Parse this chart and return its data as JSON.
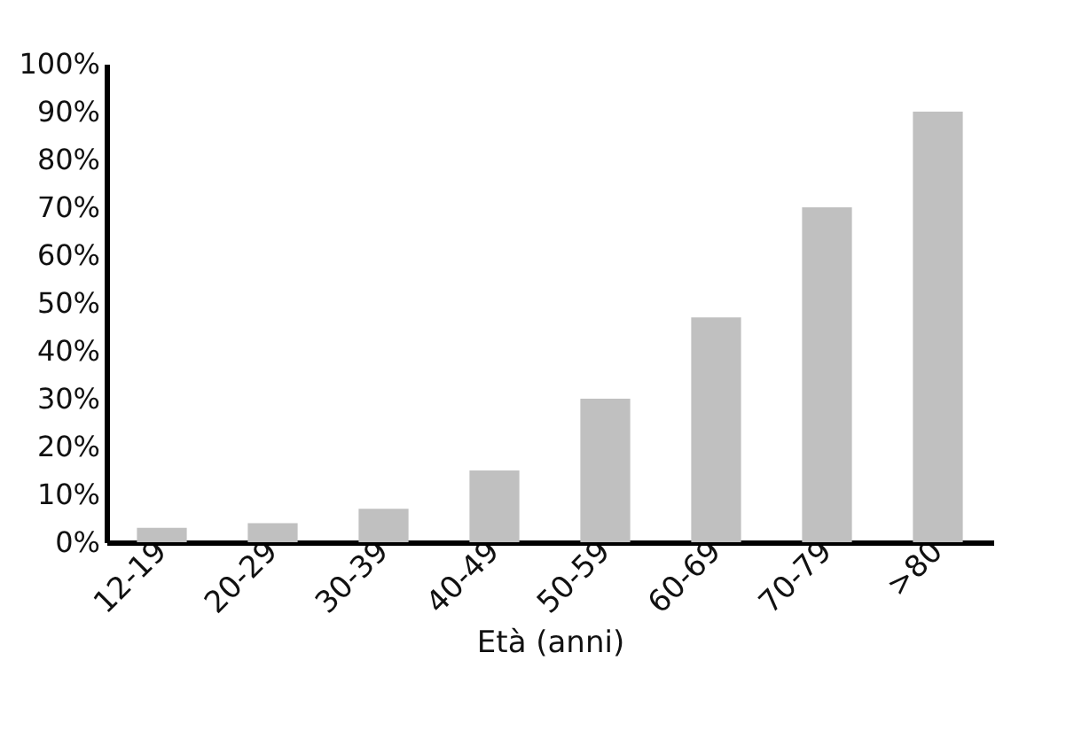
{
  "chart_data": {
    "type": "bar",
    "xlabel": "Età (anni)",
    "categories": [
      "12-19",
      "20-29",
      "30-39",
      "40-49",
      "50-59",
      "60-69",
      "70-79",
      ">80"
    ],
    "values": [
      3,
      4,
      7,
      15,
      30,
      47,
      70,
      90
    ],
    "color": "#c0c0c0",
    "ylim": [
      0,
      100
    ],
    "yticks": [
      {
        "value": 0,
        "label": "0%"
      },
      {
        "value": 10,
        "label": "10%"
      },
      {
        "value": 20,
        "label": "20%"
      },
      {
        "value": 30,
        "label": "30%"
      },
      {
        "value": 40,
        "label": "40%"
      },
      {
        "value": 50,
        "label": "50%"
      },
      {
        "value": 60,
        "label": "60%"
      },
      {
        "value": 70,
        "label": "70%"
      },
      {
        "value": 80,
        "label": "80%"
      },
      {
        "value": 90,
        "label": "90%"
      },
      {
        "value": 100,
        "label": "100%"
      }
    ],
    "grid": false
  }
}
